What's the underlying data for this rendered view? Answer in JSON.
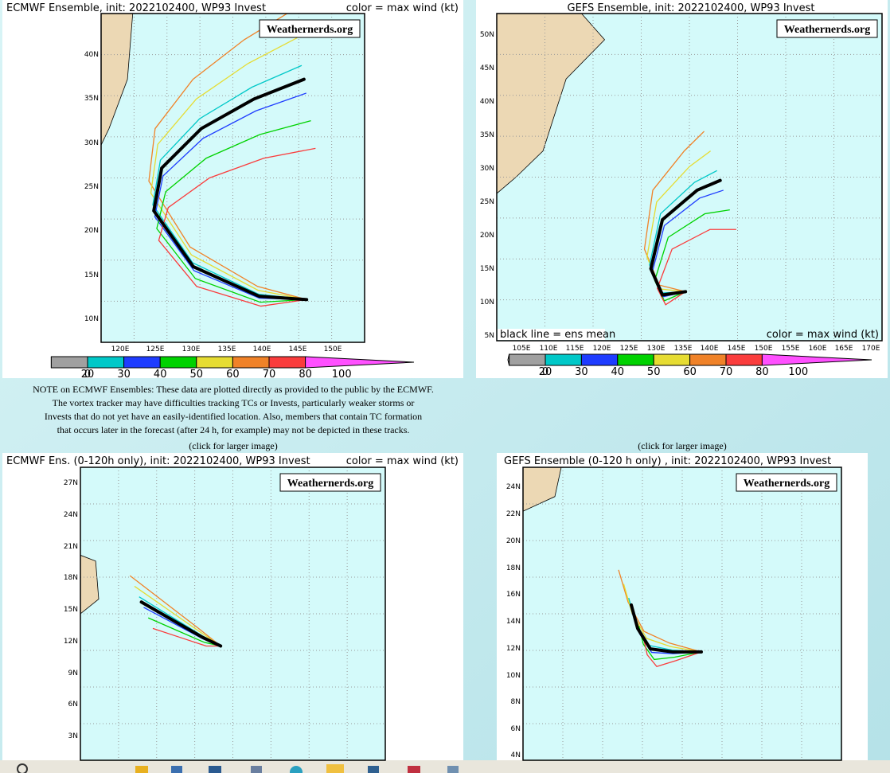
{
  "panels": [
    {
      "title": "ECMWF Ensemble, init: 2022102400, WP93 Invest",
      "legend_note": "color = max wind (kt)",
      "watermark": "Weathernerds.org",
      "lat_labels": [
        "40N",
        "35N",
        "30N",
        "25N",
        "20N",
        "15N",
        "10N"
      ],
      "lon_labels": [
        "120E",
        "125E",
        "130E",
        "135E",
        "140E",
        "145E",
        "150E"
      ],
      "colorbar_labels": [
        0,
        20,
        30,
        40,
        50,
        60,
        70,
        80,
        100
      ]
    },
    {
      "title": "GEFS Ensemble, init: 2022102400, WP93 Invest",
      "legend_note": "color = max wind (kt)",
      "mean_note": "black line = ens mean",
      "watermark": "Weathernerds.org",
      "lat_labels": [
        "50N",
        "45N",
        "40N",
        "35N",
        "30N",
        "25N",
        "20N",
        "15N",
        "10N",
        "5N"
      ],
      "lon_labels": [
        "105E",
        "110E",
        "115E",
        "120E",
        "125E",
        "130E",
        "135E",
        "140E",
        "145E",
        "150E",
        "155E",
        "160E",
        "165E",
        "170E"
      ],
      "colorbar_labels": [
        0,
        20,
        30,
        40,
        50,
        60,
        70,
        80,
        100
      ]
    },
    {
      "title": "ECMWF Ens. (0-120h only), init: 2022102400, WP93 Invest",
      "legend_note": "color = max wind (kt)",
      "watermark": "Weathernerds.org",
      "lat_labels": [
        "27N",
        "24N",
        "21N",
        "18N",
        "15N",
        "12N",
        "9N",
        "6N",
        "3N"
      ]
    },
    {
      "title": "GEFS Ensemble (0-120 h only) , init: 2022102400, WP93 Invest",
      "watermark": "Weathernerds.org",
      "lat_labels": [
        "24N",
        "22N",
        "20N",
        "18N",
        "16N",
        "14N",
        "12N",
        "10N",
        "8N",
        "6N",
        "4N"
      ]
    }
  ],
  "note": {
    "lines": [
      "NOTE on ECMWF Ensembles: These data are plotted directly as provided to the public by the ECMWF.",
      "The vortex tracker may have difficulties tracking TCs or Invests, particularly weaker storms or",
      "Invests that do not yet have an easily-identified location. Also, members that contain TC formation",
      "that occurs later in the forecast (after 24 h, for example) may not be depicted in these tracks."
    ]
  },
  "captions": [
    "(click for larger image)",
    "(click for larger image)"
  ]
}
